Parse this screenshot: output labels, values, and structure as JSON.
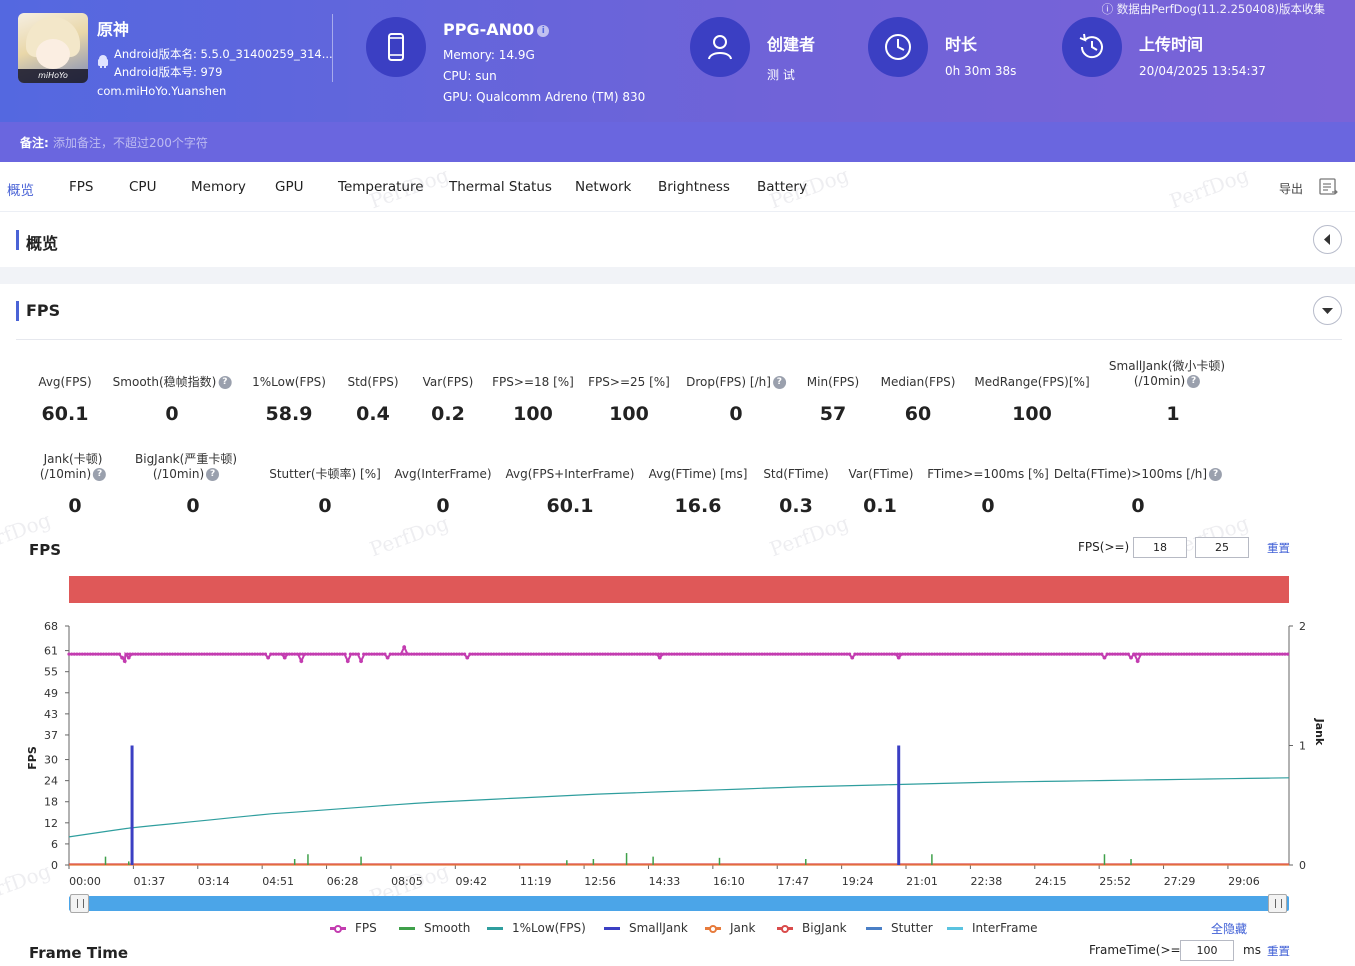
{
  "header": {
    "collect_note": "数据由PerfDog(11.2.250408)版本收集",
    "app": {
      "name": "原神",
      "avatar_brand": "miHoYo",
      "version_name": "Android版本名: 5.5.0_31400259_314...",
      "version_code": "Android版本号: 979",
      "package": "com.miHoYo.Yuanshen"
    },
    "device": {
      "name": "PPG-AN00",
      "memory": "Memory: 14.9G",
      "cpu": "CPU: sun",
      "gpu": "GPU: Qualcomm Adreno (TM) 830"
    },
    "creator": {
      "title": "创建者",
      "value": "测 试"
    },
    "duration": {
      "title": "时长",
      "value": "0h 30m 38s"
    },
    "upload": {
      "title": "上传时间",
      "value": "20/04/2025 13:54:37"
    }
  },
  "remark": {
    "label": "备注:",
    "placeholder": "添加备注，不超过200个字符"
  },
  "tabs": [
    {
      "label": "概览",
      "active": true
    },
    {
      "label": "FPS"
    },
    {
      "label": "CPU"
    },
    {
      "label": "Memory"
    },
    {
      "label": "GPU"
    },
    {
      "label": "Temperature"
    },
    {
      "label": "Thermal Status"
    },
    {
      "label": "Network"
    },
    {
      "label": "Brightness"
    },
    {
      "label": "Battery"
    }
  ],
  "export_label": "导出",
  "sections": {
    "overview": "概览",
    "fps": "FPS"
  },
  "metrics_row1": [
    {
      "label": "Avg(FPS)",
      "value": "60.1"
    },
    {
      "label": "Smooth(稳帧指数)",
      "value": "0",
      "help": true
    },
    {
      "label": "1%Low(FPS)",
      "value": "58.9"
    },
    {
      "label": "Std(FPS)",
      "value": "0.4"
    },
    {
      "label": "Var(FPS)",
      "value": "0.2"
    },
    {
      "label": "FPS>=18 [%]",
      "value": "100"
    },
    {
      "label": "FPS>=25 [%]",
      "value": "100"
    },
    {
      "label": "Drop(FPS) [/h]",
      "value": "0",
      "help": true
    },
    {
      "label": "Min(FPS)",
      "value": "57"
    },
    {
      "label": "Median(FPS)",
      "value": "60"
    },
    {
      "label": "MedRange(FPS)[%]",
      "value": "100"
    },
    {
      "label": "SmallJank(微小卡顿)",
      "label2": "(/10min)",
      "value": "1",
      "help": true
    }
  ],
  "metrics_row2": [
    {
      "label": "Jank(卡顿)",
      "label2": "(/10min)",
      "value": "0",
      "help": true
    },
    {
      "label": "BigJank(严重卡顿)",
      "label2": "(/10min)",
      "value": "0",
      "help": true
    },
    {
      "label": "Stutter(卡顿率) [%]",
      "value": "0"
    },
    {
      "label": "Avg(InterFrame)",
      "value": "0"
    },
    {
      "label": "Avg(FPS+InterFrame)",
      "value": "60.1"
    },
    {
      "label": "Avg(FTime) [ms]",
      "value": "16.6"
    },
    {
      "label": "Std(FTime)",
      "value": "0.3"
    },
    {
      "label": "Var(FTime)",
      "value": "0.1"
    },
    {
      "label": "FTime>=100ms [%]",
      "value": "0"
    },
    {
      "label": "Delta(FTime)>100ms [/h]",
      "value": "0",
      "help": true
    }
  ],
  "fps_controls": {
    "label": "FPS(>=)",
    "low": "18",
    "high": "25",
    "reset": "重置"
  },
  "chart_data": {
    "type": "line",
    "title": "FPS",
    "ylabel": "FPS",
    "y2label": "Jank",
    "ylim": [
      0,
      68
    ],
    "y2lim": [
      0,
      2
    ],
    "yticks": [
      0,
      6,
      12,
      18,
      24,
      30,
      37,
      43,
      49,
      55,
      61,
      68
    ],
    "y2ticks": [
      0,
      1,
      2
    ],
    "xticks": [
      "00:00",
      "01:37",
      "03:14",
      "04:51",
      "06:28",
      "08:05",
      "09:42",
      "11:19",
      "12:56",
      "14:33",
      "16:10",
      "17:47",
      "19:24",
      "21:01",
      "22:38",
      "24:15",
      "25:52",
      "27:29",
      "29:06"
    ],
    "duration_s": 1838,
    "grid": false,
    "series": [
      {
        "name": "FPS",
        "color": "#c33cb0",
        "baseline": 60,
        "dips": [
          [
            80,
            59
          ],
          [
            84,
            58
          ],
          [
            90,
            59
          ],
          [
            300,
            59
          ],
          [
            325,
            59
          ],
          [
            350,
            58
          ],
          [
            420,
            58
          ],
          [
            440,
            58
          ],
          [
            480,
            59
          ],
          [
            505,
            62
          ],
          [
            600,
            59
          ],
          [
            890,
            59
          ],
          [
            1180,
            59
          ],
          [
            1250,
            59
          ],
          [
            1560,
            59
          ],
          [
            1600,
            59
          ],
          [
            1610,
            58
          ]
        ]
      },
      {
        "name": "Smooth",
        "color": "#3fa04a",
        "ticks": [
          [
            55,
            0.07
          ],
          [
            90,
            0.03
          ],
          [
            340,
            0.05
          ],
          [
            360,
            0.09
          ],
          [
            440,
            0.07
          ],
          [
            750,
            0.04
          ],
          [
            790,
            0.05
          ],
          [
            840,
            0.1
          ],
          [
            880,
            0.07
          ],
          [
            980,
            0.06
          ],
          [
            1110,
            0.05
          ],
          [
            1300,
            0.09
          ],
          [
            1560,
            0.09
          ],
          [
            1600,
            0.05
          ]
        ]
      },
      {
        "name": "1%Low(FPS)",
        "color": "#2f9e9e",
        "points": [
          [
            0,
            8
          ],
          [
            90,
            10.5
          ],
          [
            300,
            14.5
          ],
          [
            540,
            17.8
          ],
          [
            800,
            20.2
          ],
          [
            1100,
            22.2
          ],
          [
            1400,
            23.6
          ],
          [
            1838,
            24.8
          ]
        ]
      },
      {
        "name": "SmallJank",
        "color": "#3b3fc3",
        "spikes": [
          [
            95,
            1
          ],
          [
            1250,
            1
          ]
        ]
      },
      {
        "name": "Jank",
        "color": "#e77b3c"
      },
      {
        "name": "BigJank",
        "color": "#d94b4b"
      },
      {
        "name": "Stutter",
        "color": "#4a7fc6"
      },
      {
        "name": "InterFrame",
        "color": "#5ac3e0"
      }
    ]
  },
  "legend_hide_all": "全隐藏",
  "frame_time": {
    "title": "Frame Time",
    "label": "FrameTime(>=)",
    "value": "100",
    "unit": "ms",
    "reset": "重置"
  },
  "watermark_text": "PerfDog"
}
